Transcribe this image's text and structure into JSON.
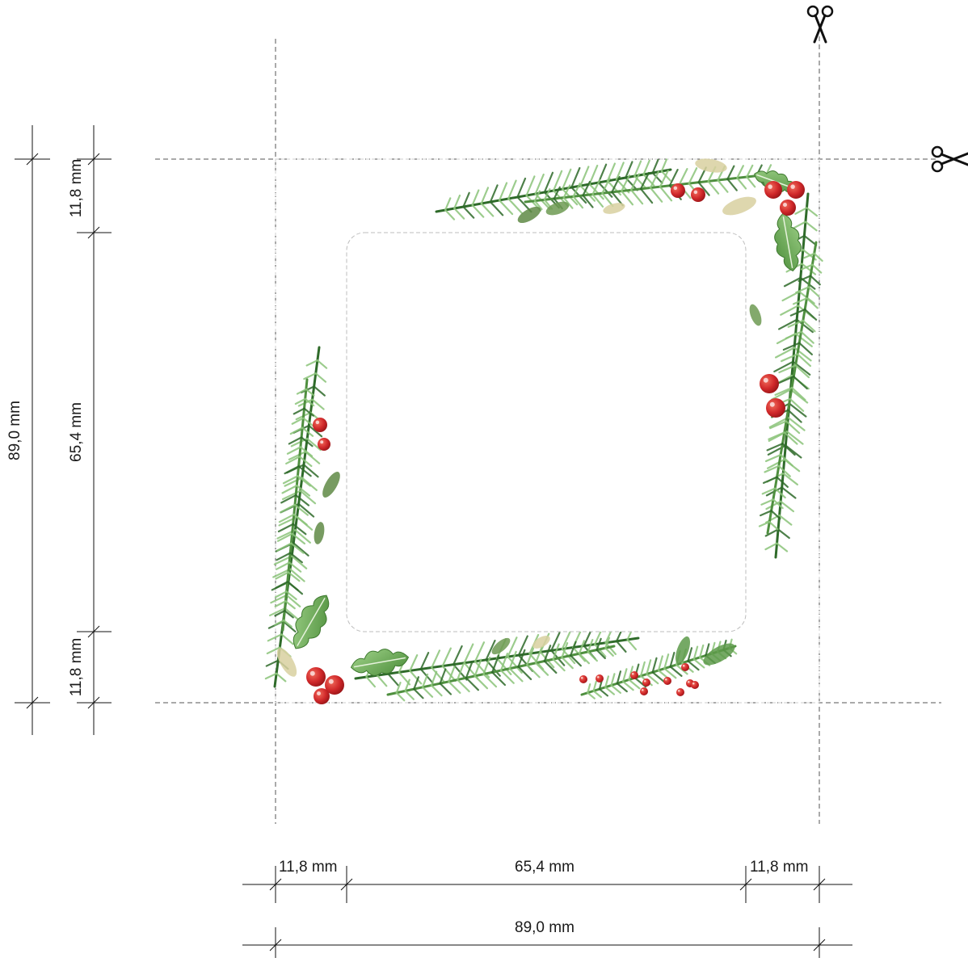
{
  "dimensions": {
    "bottom_left_margin": "11,8 mm",
    "bottom_center": "65,4 mm",
    "bottom_right_margin": "11,8 mm",
    "bottom_total": "89,0 mm",
    "left_top_margin": "11,8 mm",
    "left_center": "65,4 mm",
    "left_bottom_margin": "11,8 mm",
    "left_total": "89,0 mm"
  },
  "icons": {
    "top_cut_mark": "scissors-icon",
    "right_cut_mark": "scissors-icon"
  },
  "colors": {
    "guide_line": "#555555",
    "window_outline": "#bdbdbd",
    "pine_dark": "#2f6b2a",
    "pine_light": "#8bc47a",
    "holly": "#5d9a4a",
    "berry": "#d0282a",
    "eucalyptus": "#d8d0a0"
  }
}
